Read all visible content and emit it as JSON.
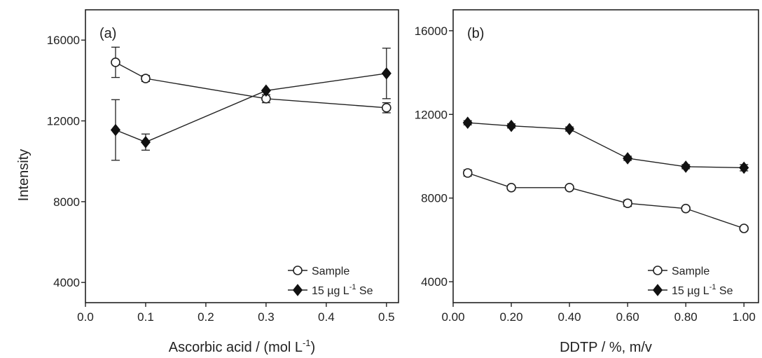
{
  "figure": {
    "ylabel": "Intensity"
  },
  "chart_data": [
    {
      "type": "line",
      "panel_label": "(a)",
      "xlabel": "Ascorbic acid / (mol L",
      "xlabel_sup": "-1",
      "xlabel_tail": ")",
      "ylabel": "Intensity",
      "xlim": [
        0.0,
        0.52
      ],
      "ylim": [
        3000,
        17500
      ],
      "xticks": [
        0.0,
        0.1,
        0.2,
        0.3,
        0.4,
        0.5
      ],
      "xtick_labels": [
        "0.0",
        "0.1",
        "0.2",
        "0.3",
        "0.4",
        "0.5"
      ],
      "yticks": [
        4000,
        8000,
        12000,
        16000
      ],
      "ytick_labels": [
        "4000",
        "8000",
        "12000",
        "16000"
      ],
      "grid": false,
      "legend_position": "bottom-right",
      "series": [
        {
          "name": "Sample",
          "marker": "open-circle",
          "x": [
            0.05,
            0.1,
            0.3,
            0.5
          ],
          "y": [
            14900,
            14100,
            13100,
            12650
          ],
          "error": [
            750,
            150,
            200,
            250
          ]
        },
        {
          "name": "15 µg L-1 Se",
          "legend_main": "15 µg L",
          "legend_sup": "-1",
          "legend_tail": " Se",
          "marker": "filled-diamond",
          "x": [
            0.05,
            0.1,
            0.3,
            0.5
          ],
          "y": [
            11550,
            10950,
            13500,
            14350
          ],
          "error": [
            1500,
            400,
            0,
            1250
          ]
        }
      ]
    },
    {
      "type": "line",
      "panel_label": "(b)",
      "xlabel": "DDTP / %, m/v",
      "ylabel": "Intensity",
      "xlim": [
        0.0,
        1.05
      ],
      "ylim": [
        3000,
        17000
      ],
      "xticks": [
        0.0,
        0.2,
        0.4,
        0.6,
        0.8,
        1.0
      ],
      "xtick_labels": [
        "0.00",
        "0.20",
        "0.40",
        "0.60",
        "0.80",
        "1.00"
      ],
      "yticks": [
        4000,
        8000,
        12000,
        16000
      ],
      "ytick_labels": [
        "4000",
        "8000",
        "12000",
        "16000"
      ],
      "grid": false,
      "legend_position": "bottom-right",
      "series": [
        {
          "name": "Sample",
          "marker": "open-circle",
          "x": [
            0.05,
            0.2,
            0.4,
            0.6,
            0.8,
            1.0
          ],
          "y": [
            9200,
            8500,
            8500,
            7750,
            7500,
            6550
          ],
          "error": [
            150,
            100,
            100,
            150,
            100,
            100
          ]
        },
        {
          "name": "15 µg L-1 Se",
          "legend_main": "15 µg L",
          "legend_sup": "-1",
          "legend_tail": " Se",
          "marker": "filled-diamond",
          "x": [
            0.05,
            0.2,
            0.4,
            0.6,
            0.8,
            1.0
          ],
          "y": [
            11600,
            11450,
            11300,
            9900,
            9500,
            9450
          ],
          "error": [
            100,
            100,
            100,
            100,
            100,
            150
          ]
        }
      ]
    }
  ]
}
